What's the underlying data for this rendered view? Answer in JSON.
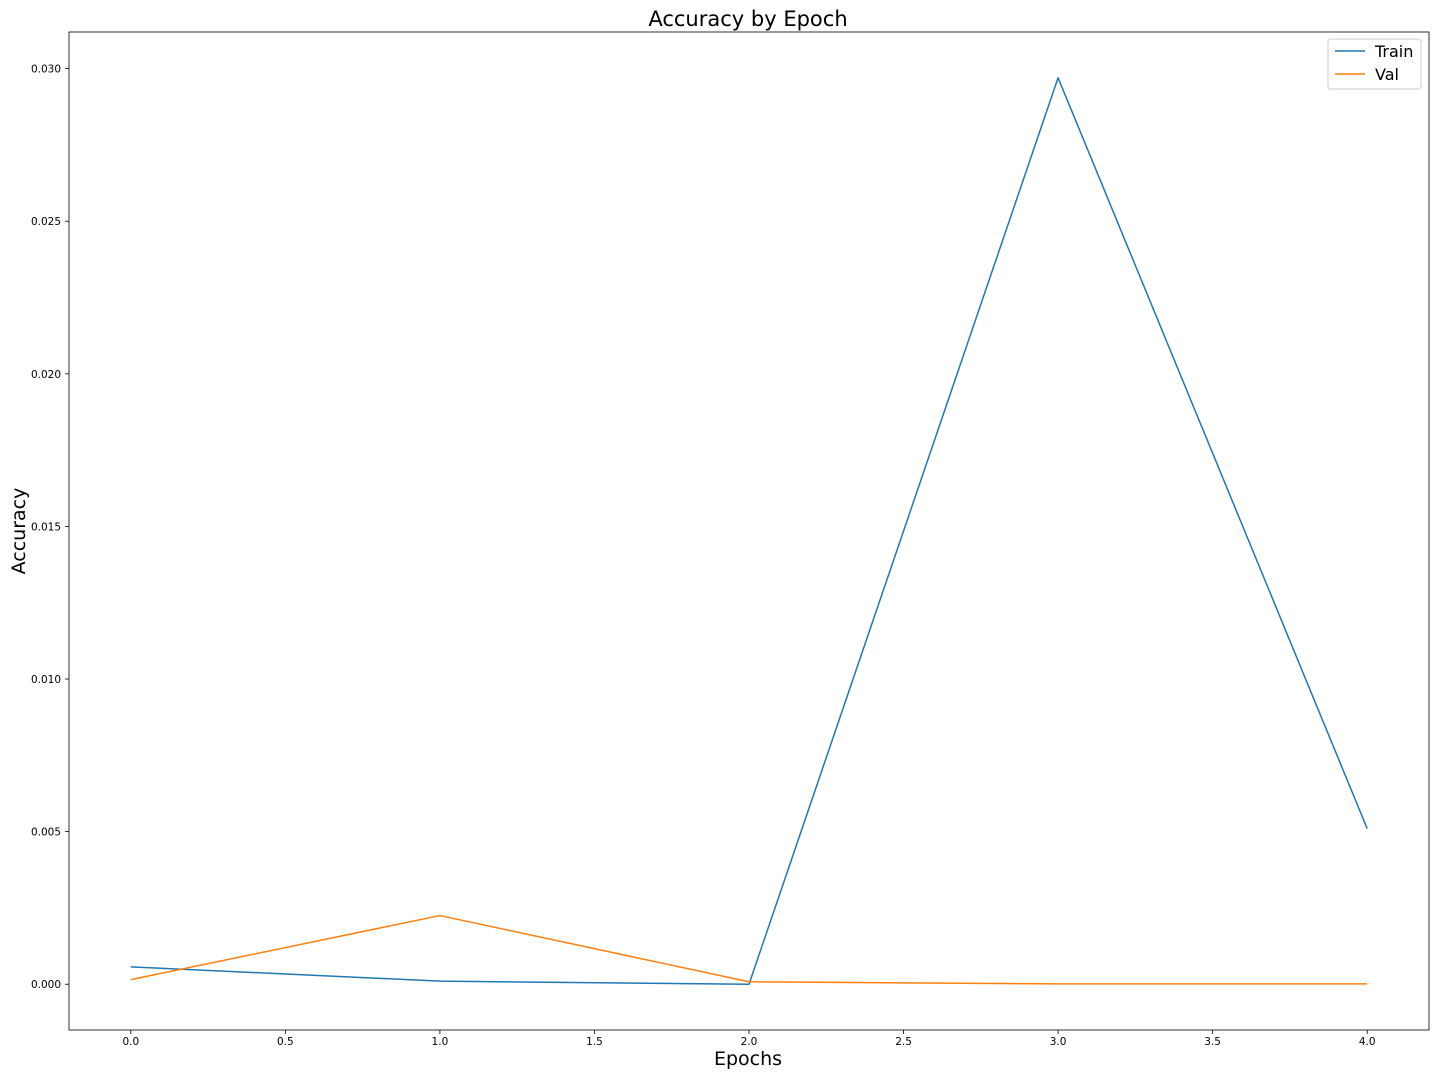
{
  "chart_data": {
    "type": "line",
    "title": "Accuracy by Epoch",
    "xlabel": "Epochs",
    "ylabel": "Accuracy",
    "xlim": [
      -0.2,
      4.2
    ],
    "ylim": [
      -0.0015,
      0.0312
    ],
    "x_ticks": [
      0.0,
      0.5,
      1.0,
      1.5,
      2.0,
      2.5,
      3.0,
      3.5,
      4.0
    ],
    "x_tick_labels": [
      "0.0",
      "0.5",
      "1.0",
      "1.5",
      "2.0",
      "2.5",
      "3.0",
      "3.5",
      "4.0"
    ],
    "y_ticks": [
      0.0,
      0.005,
      0.01,
      0.015,
      0.02,
      0.025,
      0.03
    ],
    "y_tick_labels": [
      "0.000",
      "0.005",
      "0.010",
      "0.015",
      "0.020",
      "0.025",
      "0.030"
    ],
    "grid": false,
    "legend_position": "top-right",
    "x": [
      0,
      1,
      2,
      3,
      4
    ],
    "series": [
      {
        "name": "Train",
        "color": "#1f77b4",
        "values": [
          0.00057,
          0.0001,
          0.0,
          0.0297,
          0.0051
        ]
      },
      {
        "name": "Val",
        "color": "#ff7f0e",
        "values": [
          0.00015,
          0.00225,
          8e-05,
          1e-05,
          1e-05
        ]
      }
    ]
  }
}
